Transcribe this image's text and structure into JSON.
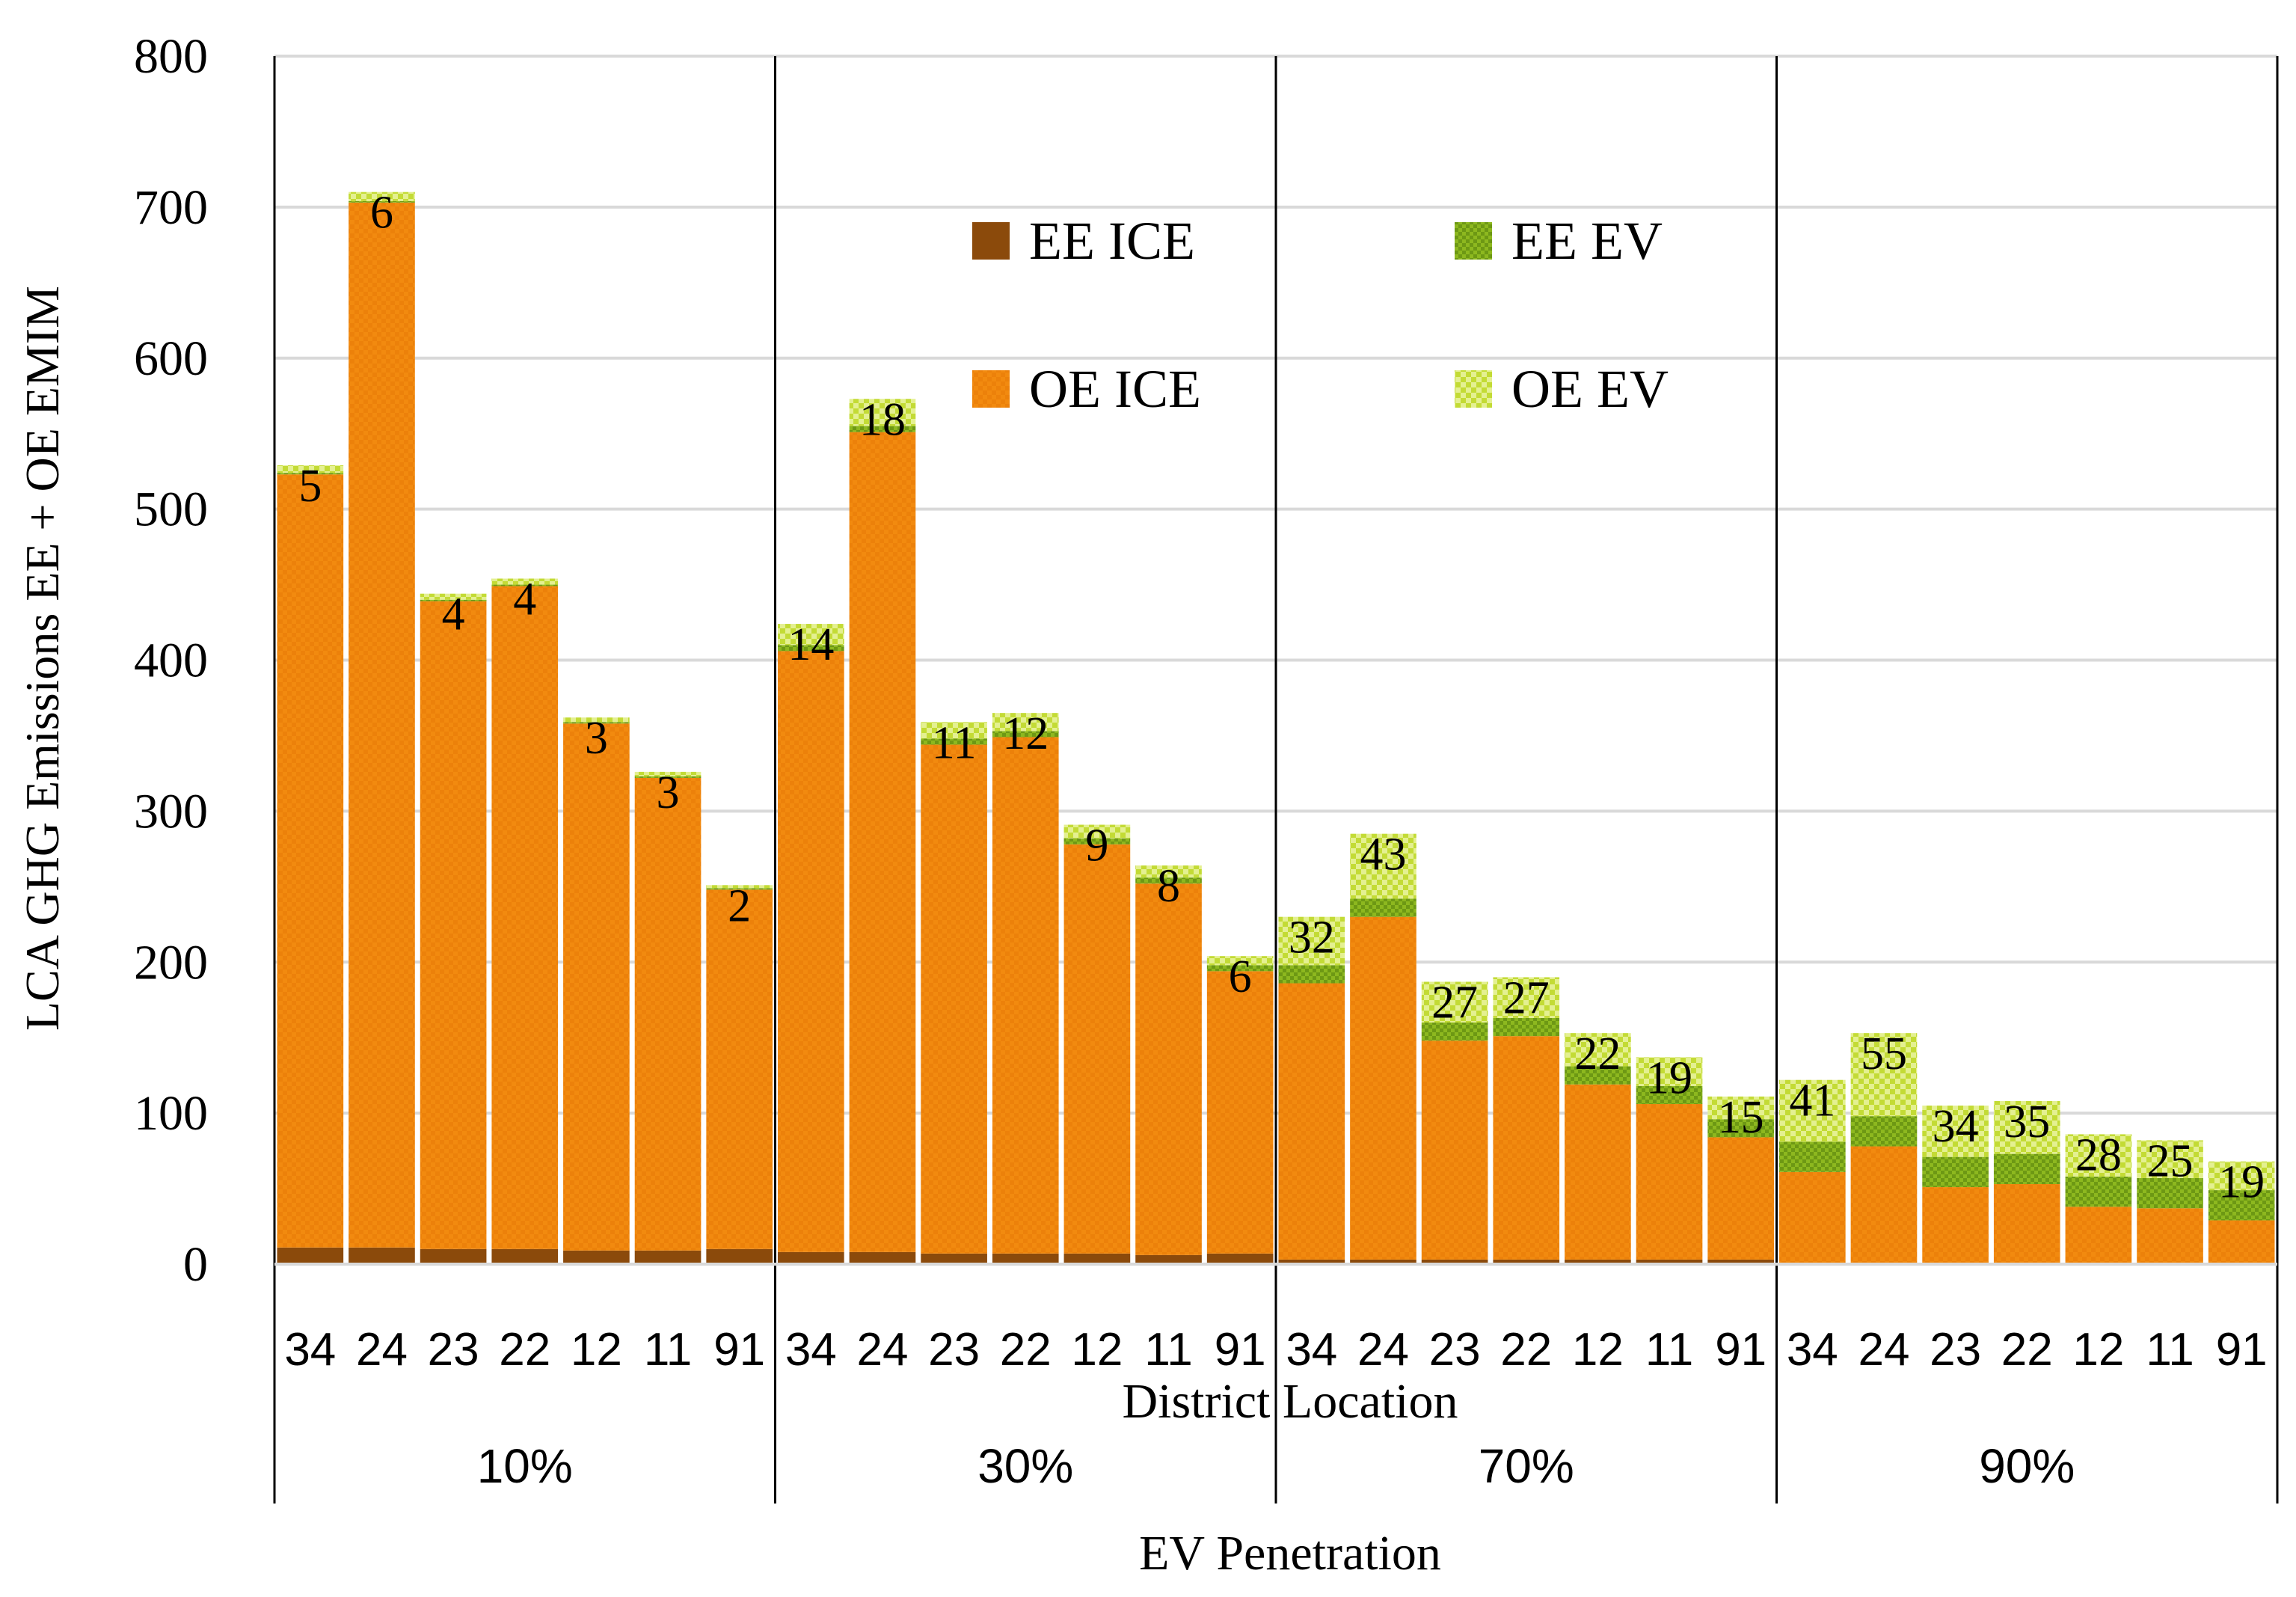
{
  "chart_data": {
    "type": "bar",
    "stacked": true,
    "ylabel": "LCA GHG Emissions  EE + OE EMIM",
    "xlabel_inner": "District Location",
    "xlabel_outer": "EV Penetration",
    "ylim": [
      0,
      800
    ],
    "yticks": [
      0,
      100,
      200,
      300,
      400,
      500,
      600,
      700,
      800
    ],
    "grid": true,
    "legend_position": "top-center",
    "groups": [
      "10%",
      "30%",
      "70%",
      "90%"
    ],
    "districts": [
      "34",
      "24",
      "23",
      "22",
      "12",
      "11",
      "91"
    ],
    "series": [
      {
        "name": "EE ICE",
        "color": "#8B4A0B",
        "values": [
          [
            11,
            11,
            10,
            10,
            9,
            9,
            10
          ],
          [
            8,
            8,
            7,
            7,
            7,
            6,
            7
          ],
          [
            3,
            3,
            3,
            3,
            3,
            3,
            3
          ],
          [
            1,
            1,
            1,
            1,
            1,
            1,
            1
          ]
        ]
      },
      {
        "name": "OE ICE",
        "color": "#F28A0F",
        "values": [
          [
            512,
            692,
            429,
            439,
            349,
            313,
            238
          ],
          [
            398,
            543,
            337,
            342,
            271,
            246,
            187
          ],
          [
            183,
            227,
            145,
            148,
            116,
            103,
            81
          ],
          [
            60,
            77,
            50,
            52,
            37,
            36,
            28
          ]
        ]
      },
      {
        "name": "EE EV",
        "color": "#7FA81A",
        "values": [
          [
            1,
            1,
            1,
            1,
            1,
            1,
            1
          ],
          [
            4,
            4,
            4,
            4,
            4,
            4,
            4
          ],
          [
            12,
            12,
            12,
            12,
            12,
            12,
            12
          ],
          [
            20,
            20,
            20,
            20,
            20,
            20,
            20
          ]
        ]
      },
      {
        "name": "OE EV",
        "color": "#C3DB35",
        "values": [
          [
            5,
            6,
            4,
            4,
            3,
            3,
            2
          ],
          [
            14,
            18,
            11,
            12,
            9,
            8,
            6
          ],
          [
            32,
            43,
            27,
            27,
            22,
            19,
            15
          ],
          [
            41,
            55,
            34,
            35,
            28,
            25,
            19
          ]
        ]
      }
    ],
    "bar_labels": [
      [
        5,
        6,
        4,
        4,
        3,
        3,
        2
      ],
      [
        14,
        18,
        11,
        12,
        9,
        8,
        6
      ],
      [
        32,
        43,
        27,
        27,
        22,
        19,
        15
      ],
      [
        41,
        55,
        34,
        35,
        28,
        25,
        19
      ]
    ]
  }
}
